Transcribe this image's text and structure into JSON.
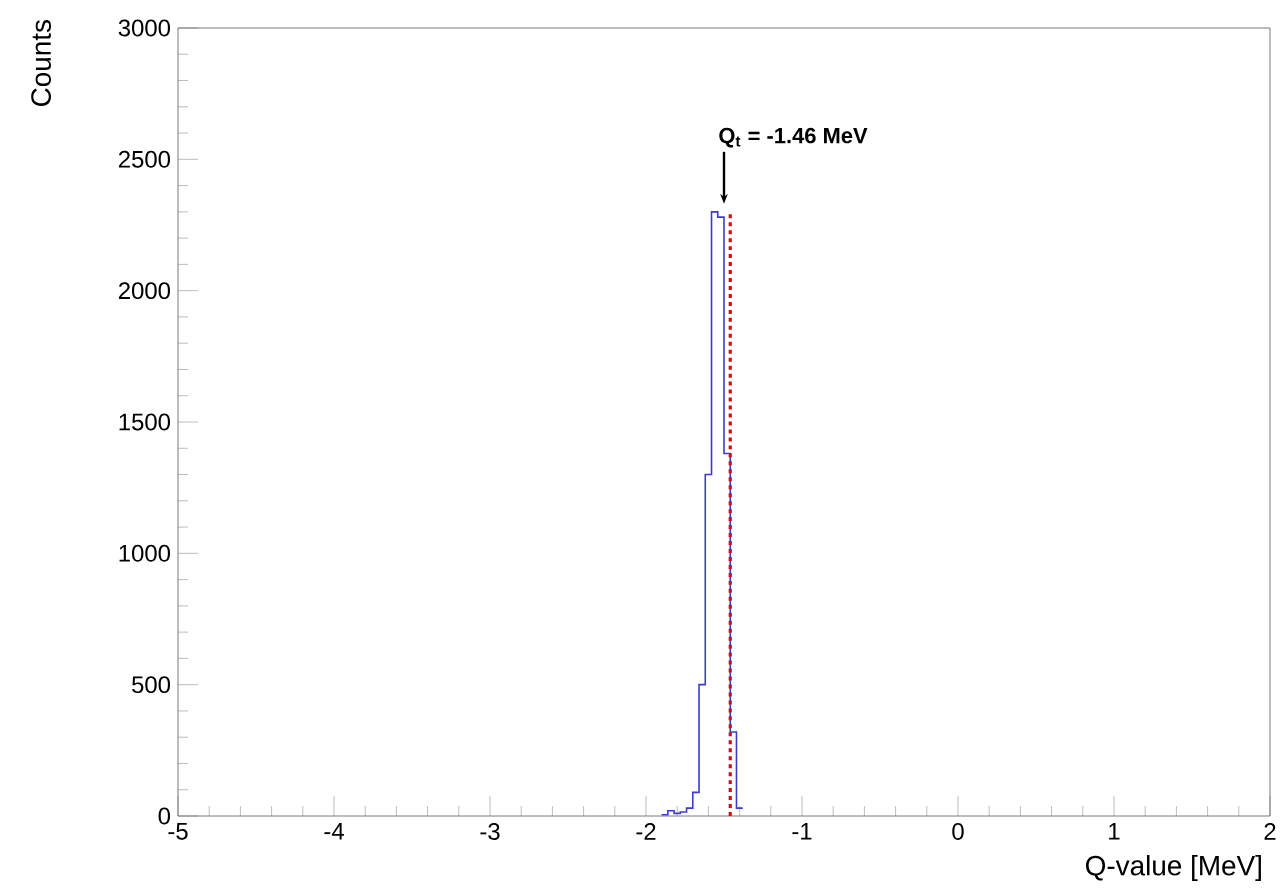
{
  "chart_data": {
    "type": "histogram",
    "xlabel": "Q-value [MeV]",
    "ylabel": "Counts",
    "bins": [
      -1.9,
      -1.86,
      -1.82,
      -1.78,
      -1.74,
      -1.7,
      -1.66,
      -1.62,
      -1.58,
      -1.54,
      -1.5,
      -1.46,
      -1.42,
      -1.38
    ],
    "values": [
      5,
      20,
      10,
      15,
      30,
      90,
      500,
      1300,
      2300,
      2280,
      1380,
      320,
      30
    ],
    "color": "#3c3cc8",
    "xlim": [
      -5,
      2
    ],
    "ylim": [
      0,
      3000
    ],
    "xticks": [
      -5,
      -4,
      -3,
      -2,
      -1,
      0,
      1,
      2
    ],
    "yticks": [
      0,
      500,
      1000,
      1500,
      2000,
      2500,
      3000
    ],
    "ref_lines": [
      {
        "axis": "x",
        "value": -1.46,
        "color": "#d01010",
        "line_style": "dotted"
      }
    ],
    "annotations": [
      {
        "text": "Q$_{t}$ = -1.46 MeV",
        "x": -1.5,
        "y": 2300
      }
    ],
    "grid": false
  }
}
